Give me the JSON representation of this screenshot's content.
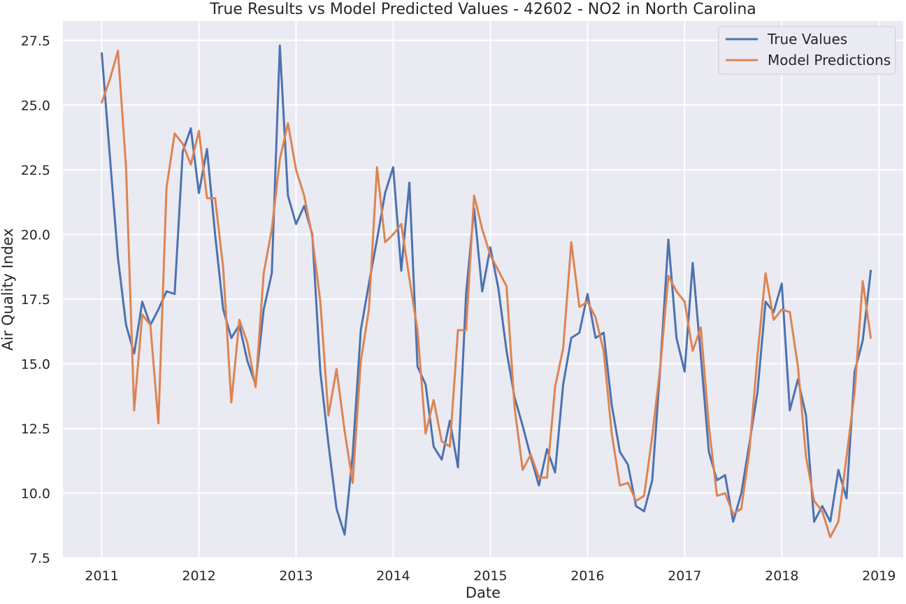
{
  "chart_data": {
    "type": "line",
    "title": "True Results vs Model Predicted Values - 42602 - NO2 in North Carolina",
    "xlabel": "Date",
    "ylabel": "Air Quality Index",
    "xlim": [
      2010.6,
      2019.25
    ],
    "ylim": [
      7.5,
      28.25
    ],
    "x_ticks": [
      2011,
      2012,
      2013,
      2014,
      2015,
      2016,
      2017,
      2018,
      2019
    ],
    "x_tick_labels": [
      "2011",
      "2012",
      "2013",
      "2014",
      "2015",
      "2016",
      "2017",
      "2018",
      "2019"
    ],
    "y_ticks": [
      7.5,
      10.0,
      12.5,
      15.0,
      17.5,
      20.0,
      22.5,
      25.0,
      27.5
    ],
    "y_tick_labels": [
      "7.5",
      "10.0",
      "12.5",
      "15.0",
      "17.5",
      "20.0",
      "22.5",
      "25.0",
      "27.5"
    ],
    "grid": true,
    "legend_position": "top-right",
    "x_start": 2011.0,
    "x_step": 0.08333,
    "series": [
      {
        "name": "True Values",
        "color": "#4c72b0",
        "values": [
          27.0,
          23.0,
          19.1,
          16.5,
          15.4,
          17.4,
          16.5,
          17.1,
          17.8,
          17.7,
          23.2,
          24.1,
          21.6,
          23.3,
          20.0,
          17.1,
          16.0,
          16.5,
          15.1,
          14.2,
          17.1,
          18.5,
          27.3,
          21.5,
          20.4,
          21.1,
          20.0,
          14.7,
          11.9,
          9.4,
          8.4,
          11.5,
          16.3,
          18.1,
          19.8,
          21.6,
          22.6,
          18.6,
          22.0,
          14.9,
          14.2,
          11.8,
          11.3,
          12.8,
          11.0,
          17.7,
          21.0,
          17.8,
          19.5,
          17.9,
          15.5,
          13.7,
          12.6,
          11.4,
          10.3,
          11.7,
          10.8,
          14.2,
          16.0,
          16.2,
          17.7,
          16.0,
          16.2,
          13.4,
          11.6,
          11.1,
          9.5,
          9.3,
          10.5,
          14.9,
          19.8,
          16.0,
          14.7,
          18.9,
          15.3,
          11.6,
          10.5,
          10.7,
          8.9,
          10.0,
          11.9,
          13.9,
          17.4,
          17.0,
          18.1,
          13.2,
          14.4,
          13.0,
          8.9,
          9.5,
          8.9,
          10.9,
          9.8,
          14.7,
          15.9,
          18.6
        ]
      },
      {
        "name": "Model Predictions",
        "color": "#dd8452",
        "values": [
          25.1,
          26.0,
          27.1,
          22.6,
          13.2,
          16.9,
          16.5,
          12.7,
          21.8,
          23.9,
          23.5,
          22.7,
          24.0,
          21.4,
          21.4,
          18.7,
          13.5,
          16.7,
          15.8,
          14.1,
          18.5,
          20.2,
          22.9,
          24.3,
          22.5,
          21.5,
          19.9,
          17.4,
          13.0,
          14.8,
          12.4,
          10.4,
          15.1,
          17.1,
          22.6,
          19.7,
          20.0,
          20.4,
          18.3,
          16.3,
          12.3,
          13.6,
          12.0,
          11.8,
          16.3,
          16.3,
          21.5,
          20.2,
          19.2,
          18.6,
          18.0,
          13.3,
          10.9,
          11.5,
          10.6,
          10.6,
          14.1,
          15.6,
          19.7,
          17.2,
          17.4,
          16.8,
          15.5,
          12.3,
          10.3,
          10.4,
          9.7,
          9.9,
          12.2,
          14.9,
          18.4,
          17.8,
          17.4,
          15.5,
          16.4,
          12.6,
          9.9,
          10.0,
          9.2,
          9.4,
          11.6,
          15.3,
          18.5,
          16.7,
          17.1,
          17.0,
          14.9,
          11.4,
          9.7,
          9.3,
          8.3,
          8.9,
          11.4,
          13.9,
          18.2,
          16.0
        ]
      }
    ]
  }
}
